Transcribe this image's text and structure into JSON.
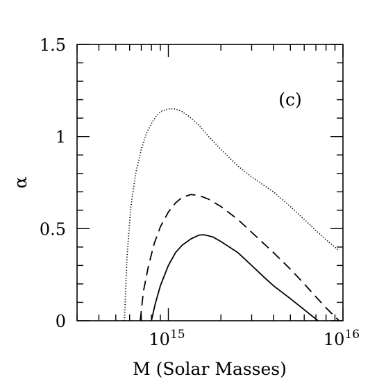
{
  "chart_data": {
    "type": "line",
    "panel_label": "(c)",
    "xlabel": "M (Solar Masses)",
    "ylabel": "α",
    "xscale": "log",
    "xlim": [
      300000000000000.0,
      1e+16
    ],
    "ylim": [
      0,
      1.5
    ],
    "x_tick_labels": [
      {
        "value": 1000000000000000.0,
        "base": "10",
        "exp": "15"
      },
      {
        "value": 1e+16,
        "base": "10",
        "exp": "16"
      }
    ],
    "y_ticks": [
      {
        "value": 0,
        "label": "0"
      },
      {
        "value": 0.5,
        "label": "0.5"
      },
      {
        "value": 1,
        "label": "1"
      },
      {
        "value": 1.5,
        "label": "1.5"
      }
    ],
    "grid": false,
    "series": [
      {
        "style": "dotted",
        "x": [
          560000000000000.0,
          580000000000000.0,
          610000000000000.0,
          650000000000000.0,
          700000000000000.0,
          750000000000000.0,
          800000000000000.0,
          850000000000000.0,
          900000000000000.0,
          1000000000000000.0,
          1100000000000000.0,
          1200000000000000.0,
          1350000000000000.0,
          1500000000000000.0,
          1700000000000000.0,
          2000000000000000.0,
          2500000000000000.0,
          3000000000000000.0,
          4000000000000000.0,
          5000000000000000.0,
          6000000000000000.0,
          7000000000000000.0,
          8000000000000000.0,
          9500000000000000.0
        ],
        "y": [
          0.0,
          0.35,
          0.62,
          0.8,
          0.93,
          1.02,
          1.07,
          1.11,
          1.135,
          1.15,
          1.15,
          1.135,
          1.1,
          1.06,
          1.0,
          0.93,
          0.84,
          0.78,
          0.7,
          0.62,
          0.55,
          0.49,
          0.44,
          0.38
        ]
      },
      {
        "style": "dashed",
        "x": [
          690000000000000.0,
          720000000000000.0,
          770000000000000.0,
          830000000000000.0,
          900000000000000.0,
          1000000000000000.0,
          1100000000000000.0,
          1200000000000000.0,
          1350000000000000.0,
          1500000000000000.0,
          1700000000000000.0,
          2000000000000000.0,
          2500000000000000.0,
          3000000000000000.0,
          4000000000000000.0,
          5000000000000000.0,
          6000000000000000.0,
          7000000000000000.0,
          8000000000000000.0,
          9500000000000000.0
        ],
        "y": [
          0.0,
          0.16,
          0.3,
          0.42,
          0.51,
          0.59,
          0.64,
          0.67,
          0.685,
          0.68,
          0.66,
          0.62,
          0.55,
          0.48,
          0.37,
          0.28,
          0.2,
          0.13,
          0.07,
          0.0
        ]
      },
      {
        "style": "solid",
        "x": [
          800000000000000.0,
          840000000000000.0,
          900000000000000.0,
          1000000000000000.0,
          1100000000000000.0,
          1200000000000000.0,
          1350000000000000.0,
          1500000000000000.0,
          1600000000000000.0,
          1800000000000000.0,
          2000000000000000.0,
          2500000000000000.0,
          3000000000000000.0,
          3500000000000000.0,
          4000000000000000.0,
          5000000000000000.0,
          6000000000000000.0,
          7200000000000000.0
        ],
        "y": [
          0.0,
          0.09,
          0.19,
          0.3,
          0.37,
          0.41,
          0.445,
          0.465,
          0.467,
          0.455,
          0.43,
          0.37,
          0.3,
          0.24,
          0.19,
          0.12,
          0.06,
          0.0
        ]
      }
    ]
  }
}
